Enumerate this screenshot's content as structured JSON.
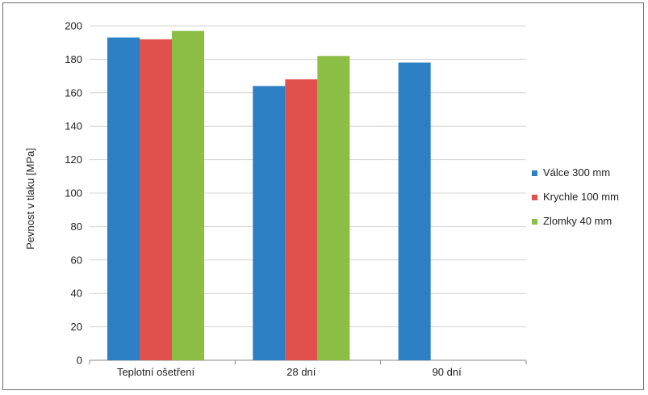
{
  "chart_data": {
    "type": "bar",
    "title": "",
    "xlabel": "",
    "ylabel": "Pevnost v tlaku [MPa]",
    "ylim": [
      0,
      200
    ],
    "yticks": [
      0,
      20,
      40,
      60,
      80,
      100,
      120,
      140,
      160,
      180,
      200
    ],
    "grid": true,
    "legend_position": "right",
    "categories": [
      "Teplotní ošetření",
      "28 dní",
      "90 dní"
    ],
    "series": [
      {
        "name": "Válce 300 mm",
        "color": "#2b7fc2",
        "values": [
          193,
          164,
          178
        ]
      },
      {
        "name": "Krychle 100 mm",
        "color": "#e0504c",
        "values": [
          192,
          168,
          null
        ]
      },
      {
        "name": "Zlomky 40 mm",
        "color": "#8cbd45",
        "values": [
          197,
          182,
          null
        ]
      }
    ]
  }
}
